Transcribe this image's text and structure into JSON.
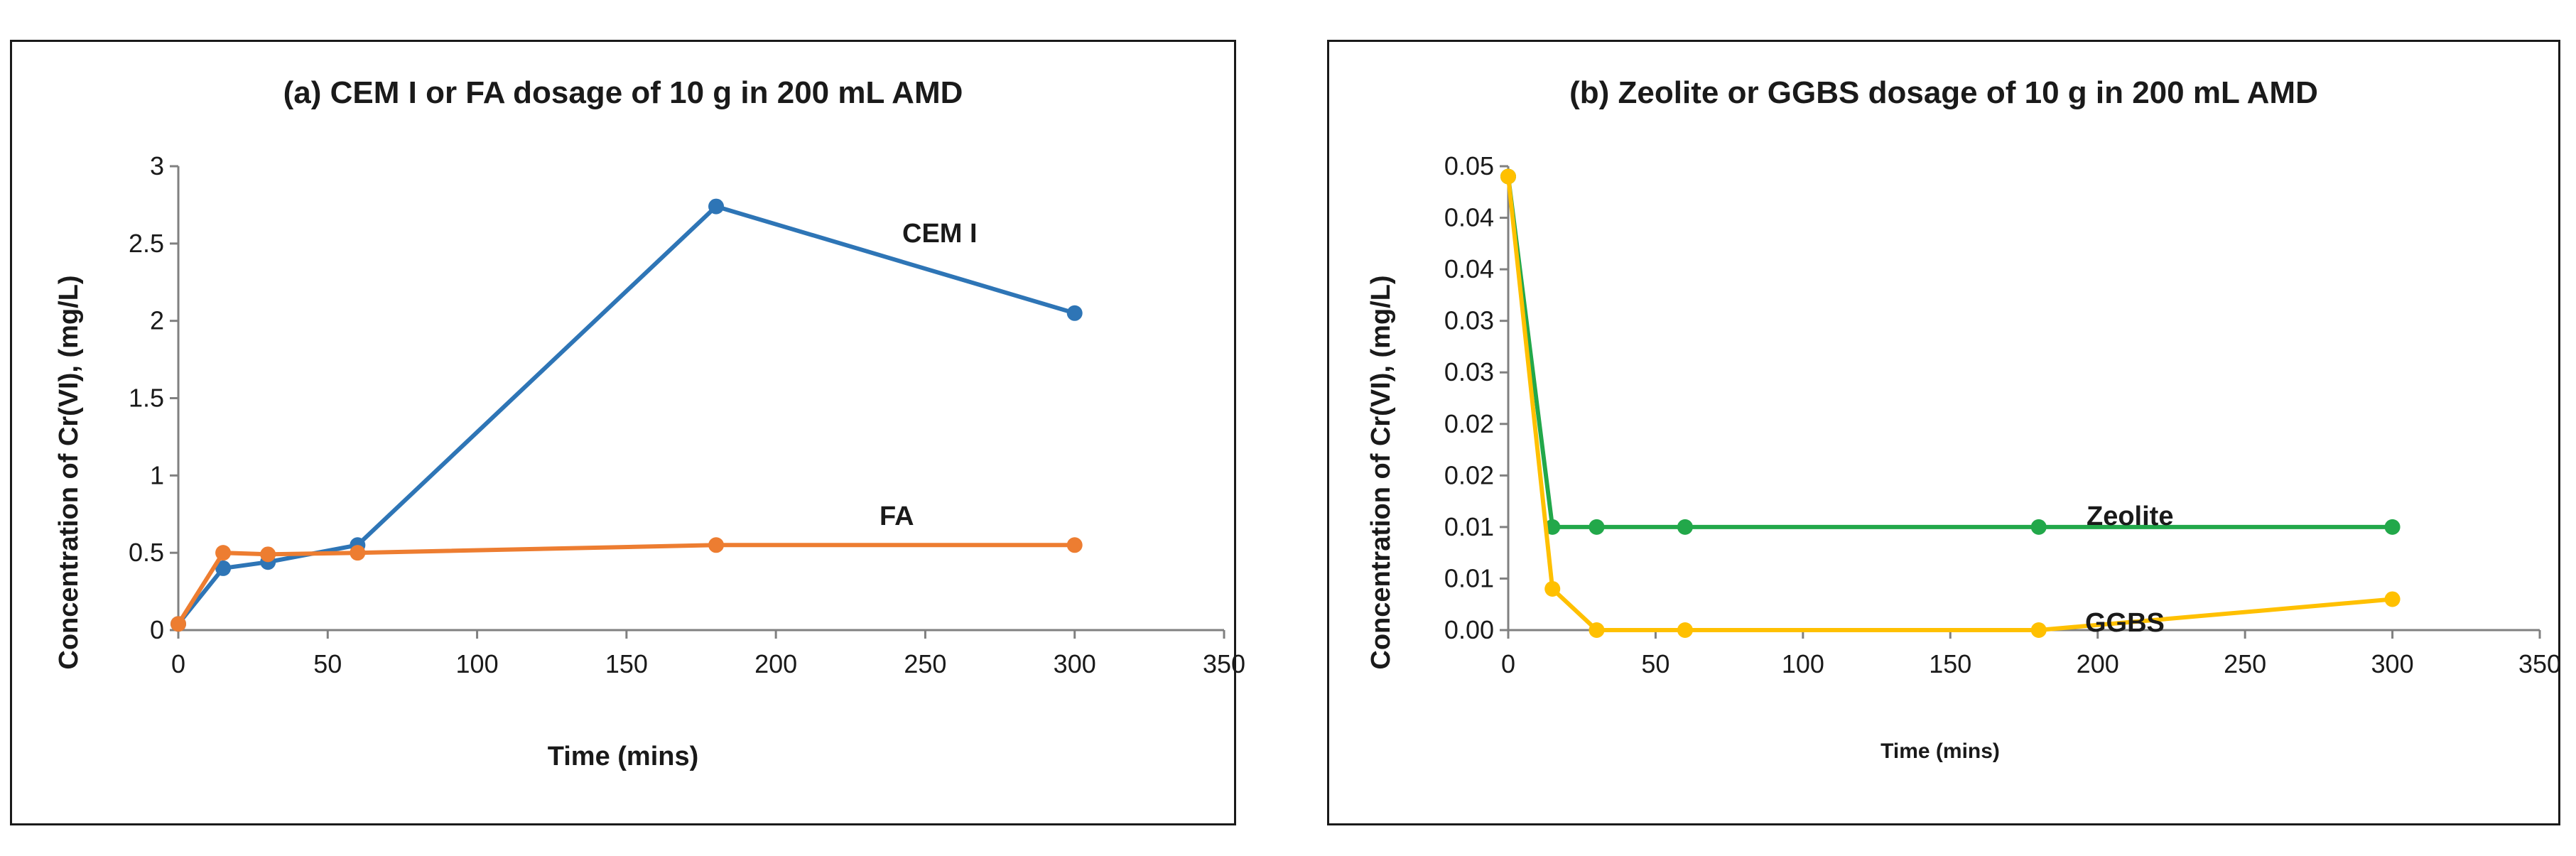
{
  "chart_data": [
    {
      "type": "line",
      "title": "(a) CEM I or FA dosage of 10 g in 200 mL AMD",
      "xlabel": "Time (mins)",
      "ylabel": "Concentration of Cr(VI), (mg/L)",
      "xlim": [
        0,
        350
      ],
      "ylim": [
        0,
        3
      ],
      "xticks": [
        "0",
        "50",
        "100",
        "150",
        "200",
        "250",
        "300",
        "350"
      ],
      "yticks": [
        "0",
        "0.5",
        "1",
        "1.5",
        "2",
        "2.5",
        "3"
      ],
      "grid": false,
      "legend": "inline labels",
      "series": [
        {
          "name": "CEM I",
          "color": "#2e75b6",
          "x": [
            0,
            15,
            30,
            60,
            180,
            300
          ],
          "y": [
            0.04,
            0.4,
            0.44,
            0.55,
            2.74,
            2.05
          ]
        },
        {
          "name": "FA",
          "color": "#ed7d31",
          "x": [
            0,
            15,
            30,
            60,
            180,
            300
          ],
          "y": [
            0.04,
            0.5,
            0.49,
            0.5,
            0.55,
            0.55
          ]
        }
      ]
    },
    {
      "type": "line",
      "title": "(b) Zeolite or GGBS dosage of 10 g in 200 mL AMD",
      "xlabel": "Time (mins)",
      "ylabel": "Concentration of Cr(VI), (mg/L)",
      "xlim": [
        0,
        350
      ],
      "ylim": [
        0,
        0.045
      ],
      "xticks": [
        "0",
        "50",
        "100",
        "150",
        "200",
        "250",
        "300",
        "350"
      ],
      "yticks": [
        "0.00",
        "0.01",
        "0.01",
        "0.02",
        "0.02",
        "0.03",
        "0.03",
        "0.04",
        "0.04",
        "0.05"
      ],
      "grid": false,
      "legend": "inline labels",
      "series": [
        {
          "name": "Zeolite",
          "color": "#22a84a",
          "x": [
            0,
            15,
            30,
            60,
            180,
            300
          ],
          "y": [
            0.044,
            0.01,
            0.01,
            0.01,
            0.01,
            0.01
          ]
        },
        {
          "name": "GGBS",
          "color": "#ffc000",
          "x": [
            0,
            15,
            30,
            60,
            180,
            300
          ],
          "y": [
            0.044,
            0.004,
            0.0,
            0.0,
            0.0,
            0.003
          ]
        }
      ]
    }
  ]
}
